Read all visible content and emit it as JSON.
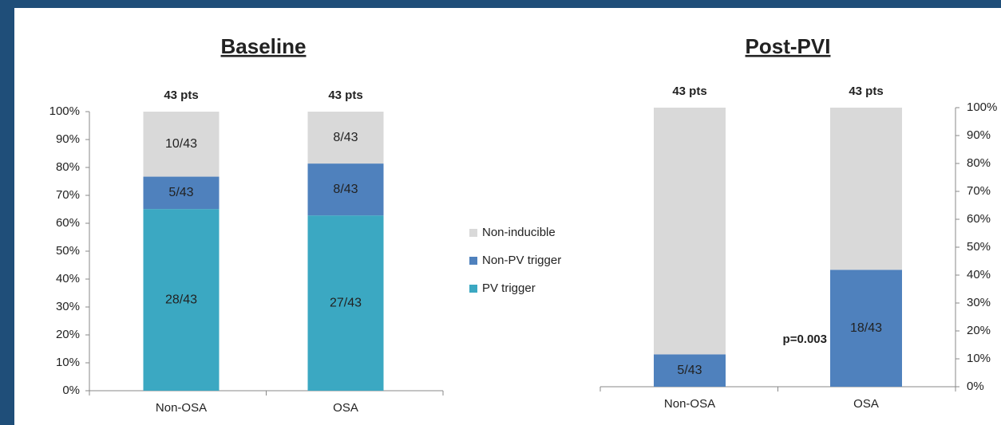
{
  "chart_data": [
    {
      "type": "stacked-bar",
      "title": "Baseline",
      "categories": [
        "Non-OSA",
        "OSA"
      ],
      "bar_labels": [
        "43 pts",
        "43 pts"
      ],
      "series": [
        {
          "name": "PV trigger",
          "color": "#3ba8c2",
          "values": [
            65.1,
            62.8
          ],
          "value_labels": [
            "28/43",
            "27/43"
          ]
        },
        {
          "name": "Non-PV trigger",
          "color": "#4f81bd",
          "values": [
            11.6,
            18.6
          ],
          "value_labels": [
            "5/43",
            "8/43"
          ]
        },
        {
          "name": "Non-inducible",
          "color": "#d9d9d9",
          "values": [
            23.3,
            18.6
          ],
          "value_labels": [
            "10/43",
            "8/43"
          ]
        }
      ],
      "ylim": [
        0,
        100
      ],
      "yticks": [
        {
          "value": 0,
          "label": "0%"
        },
        {
          "value": 10,
          "label": "10%"
        },
        {
          "value": 20,
          "label": "20%"
        },
        {
          "value": 30,
          "label": "30%"
        },
        {
          "value": 40,
          "label": "40%"
        },
        {
          "value": 50,
          "label": "50%"
        },
        {
          "value": 60,
          "label": "60%"
        },
        {
          "value": 70,
          "label": "70%"
        },
        {
          "value": 80,
          "label": "80%"
        },
        {
          "value": 90,
          "label": "90%"
        },
        {
          "value": 100,
          "label": "100%"
        }
      ],
      "y_axis_side": "left",
      "legend": "right"
    },
    {
      "type": "stacked-bar",
      "title": "Post-PVI",
      "categories": [
        "Non-OSA",
        "OSA"
      ],
      "bar_labels": [
        "43 pts",
        "43 pts"
      ],
      "annotation": "p=0.003",
      "series": [
        {
          "name": "Non-PV trigger",
          "color": "#4f81bd",
          "values": [
            11.6,
            41.9
          ],
          "value_labels": [
            "5/43",
            "18/43"
          ]
        },
        {
          "name": "Non-inducible",
          "color": "#d9d9d9",
          "values": [
            88.4,
            58.1
          ],
          "value_labels": [
            null,
            null
          ]
        }
      ],
      "ylim": [
        0,
        100
      ],
      "yticks": [
        {
          "value": 0,
          "label": "0%"
        },
        {
          "value": 10,
          "label": "10%"
        },
        {
          "value": 20,
          "label": "20%"
        },
        {
          "value": 30,
          "label": "30%"
        },
        {
          "value": 40,
          "label": "40%"
        },
        {
          "value": 50,
          "label": "50%"
        },
        {
          "value": 60,
          "label": "60%"
        },
        {
          "value": 70,
          "label": "70%"
        },
        {
          "value": 80,
          "label": "80%"
        },
        {
          "value": 90,
          "label": "90%"
        },
        {
          "value": 100,
          "label": "100%"
        }
      ],
      "y_axis_side": "right"
    }
  ]
}
